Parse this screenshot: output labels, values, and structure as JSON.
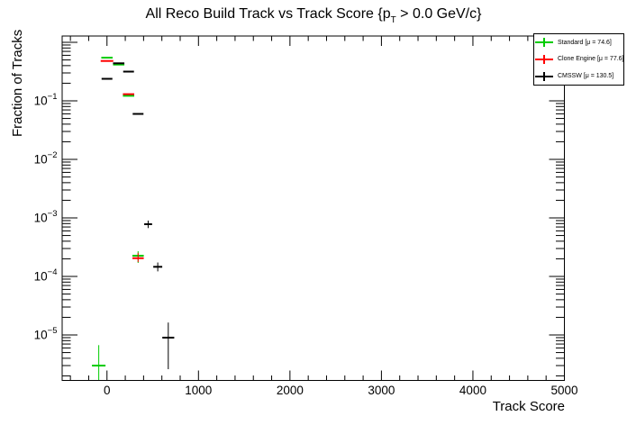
{
  "page": {
    "title_pre": "All Reco Build Track vs Track Score {p",
    "title_sub": "T",
    "title_post": " > 0.0 GeV/c}"
  },
  "axes": {
    "x": {
      "title": "Track Score",
      "min": -490,
      "max": 5000,
      "major_ticks": [
        0,
        1000,
        2000,
        3000,
        4000,
        5000
      ],
      "minor_step": 200
    },
    "y": {
      "title": "Fraction of Tracks",
      "scale": "log",
      "min": 1.7e-06,
      "max": 1.28,
      "labeled_decades": [
        -1,
        -2,
        -3,
        -4,
        -5
      ]
    }
  },
  "legend": {
    "items": [
      {
        "label": "Standard  [μ = 74.6]",
        "color": "#00cc00"
      },
      {
        "label": "Clone Engine  [μ = 77.6]",
        "color": "#ff0000"
      },
      {
        "label": "CMSSW  [μ = 130.5]",
        "color": "#000000"
      }
    ]
  },
  "chart_data": {
    "type": "scatter",
    "title": "All Reco Build Track vs Track Score {p_T > 0.0 GeV/c}",
    "xlabel": "Track Score",
    "ylabel": "Fraction of Tracks",
    "xlim": [
      -490,
      5000
    ],
    "ylim": [
      1.7e-06,
      1.28
    ],
    "yscale": "log",
    "grid": false,
    "legend_position": "top-right",
    "bin_halfwidth": 62,
    "series": [
      {
        "name": "Standard",
        "mu": 74.6,
        "color": "#00cc00",
        "points": [
          {
            "x": 0,
            "y": 0.547
          },
          {
            "x": 128,
            "y": 0.417
          },
          {
            "x": 236,
            "y": 0.122
          },
          {
            "x": 340,
            "y": 0.000226,
            "ylo": 0.00017,
            "yhi": 0.00027
          },
          {
            "x": -90,
            "y": 3e-06,
            "ylo": 1.7e-06,
            "yhi": 6.7e-06,
            "xw": 74
          }
        ]
      },
      {
        "name": "Clone Engine",
        "mu": 77.6,
        "color": "#ff0000",
        "points": [
          {
            "x": 0,
            "y": 0.48,
            "xw": 69
          },
          {
            "x": 236,
            "y": 0.13
          },
          {
            "x": 340,
            "y": 0.000205,
            "ylo": 0.000176,
            "yhi": 0.000253
          }
        ]
      },
      {
        "name": "CMSSW",
        "mu": 130.5,
        "color": "#000000",
        "points": [
          {
            "x": 0,
            "y": 0.238,
            "xw": 59
          },
          {
            "x": 128,
            "y": 0.438
          },
          {
            "x": 236,
            "y": 0.316,
            "xw": 59
          },
          {
            "x": 340,
            "y": 0.0598,
            "xw": 59
          },
          {
            "x": 450,
            "y": 0.00078,
            "ylo": 0.00067,
            "yhi": 0.0009,
            "xw": 43
          },
          {
            "x": 555,
            "y": 0.000146,
            "ylo": 0.000122,
            "yhi": 0.000173,
            "xw": 49
          },
          {
            "x": 670,
            "y": 9e-06,
            "ylo": 2.6e-06,
            "yhi": 1.63e-05,
            "xw": 65
          }
        ]
      }
    ]
  }
}
